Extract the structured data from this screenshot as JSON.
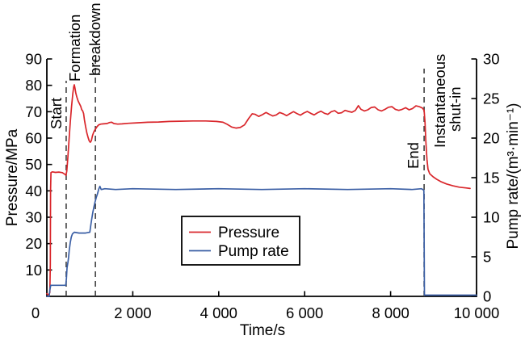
{
  "figure": {
    "background": "#ffffff",
    "axis_color": "#000000",
    "annotation_line_color": "#3d3d3d"
  },
  "chart_data": {
    "type": "line",
    "title": "",
    "xlabel": "Time/s",
    "ylabel_left": "Pressure/MPa",
    "ylabel_right": "Pump rate/(m³·min⁻¹)",
    "xlim": [
      0,
      10000
    ],
    "ylim_left": [
      0,
      90
    ],
    "ylim_right": [
      0,
      30
    ],
    "grid": false,
    "x_major_ticks": [
      0,
      2000,
      4000,
      6000,
      8000,
      10000
    ],
    "x_tick_labels": [
      "0",
      "2 000",
      "4 000",
      "6 000",
      "8 000",
      "10 000"
    ],
    "y_left_ticks": [
      10,
      20,
      30,
      40,
      50,
      60,
      70,
      80,
      90
    ],
    "y_right_ticks": [
      0,
      5,
      10,
      15,
      20,
      25,
      30
    ],
    "legend": {
      "position": "lower-center",
      "entries": [
        {
          "name": "Pressure",
          "color": "#d9262b"
        },
        {
          "name": "Pump rate",
          "color": "#3b5fa5"
        }
      ]
    },
    "annotations": [
      {
        "label": "Start",
        "lines": [
          "Start"
        ],
        "time": 450,
        "draw_line": true
      },
      {
        "label": "Formation breakdown",
        "lines": [
          "Formation",
          "breakdown"
        ],
        "time": 1130,
        "draw_line": true
      },
      {
        "label": "End",
        "lines": [
          "End"
        ],
        "time": 8780,
        "draw_line": true
      },
      {
        "label": "Instantaneous shut-in",
        "lines": [
          "Instantaneous",
          "shut-in"
        ],
        "time": 8780,
        "draw_line": false
      }
    ],
    "series": [
      {
        "name": "Pressure",
        "axis": "left",
        "color": "#d9262b",
        "points": [
          [
            0,
            1.0
          ],
          [
            40,
            0.5
          ],
          [
            70,
            1.5
          ],
          [
            80,
            12
          ],
          [
            86,
            40
          ],
          [
            95,
            46.9
          ],
          [
            130,
            47.2
          ],
          [
            200,
            47.0
          ],
          [
            280,
            47.1
          ],
          [
            360,
            46.9
          ],
          [
            420,
            46.3
          ],
          [
            445,
            45.9
          ],
          [
            465,
            47.5
          ],
          [
            490,
            53
          ],
          [
            515,
            59
          ],
          [
            545,
            66
          ],
          [
            575,
            72
          ],
          [
            605,
            77
          ],
          [
            625,
            79.5
          ],
          [
            640,
            80.2
          ],
          [
            655,
            79
          ],
          [
            675,
            77
          ],
          [
            700,
            75.5
          ],
          [
            730,
            74
          ],
          [
            760,
            73
          ],
          [
            790,
            72
          ],
          [
            810,
            70.8
          ],
          [
            835,
            70.3
          ],
          [
            855,
            69.3
          ],
          [
            875,
            67
          ],
          [
            900,
            64.5
          ],
          [
            930,
            62
          ],
          [
            960,
            60.2
          ],
          [
            985,
            59
          ],
          [
            1010,
            58.4
          ],
          [
            1035,
            59
          ],
          [
            1060,
            60.8
          ],
          [
            1085,
            62
          ],
          [
            1110,
            62.9
          ],
          [
            1135,
            63.5
          ],
          [
            1165,
            64.3
          ],
          [
            1205,
            65.0
          ],
          [
            1255,
            65.3
          ],
          [
            1310,
            65.4
          ],
          [
            1400,
            65.5
          ],
          [
            1460,
            65.9
          ],
          [
            1510,
            66.0
          ],
          [
            1560,
            65.5
          ],
          [
            1650,
            65.3
          ],
          [
            1750,
            65.4
          ],
          [
            1900,
            65.6
          ],
          [
            2100,
            65.8
          ],
          [
            2350,
            66.0
          ],
          [
            2600,
            66.1
          ],
          [
            2850,
            66.3
          ],
          [
            3100,
            66.4
          ],
          [
            3400,
            66.5
          ],
          [
            3700,
            66.5
          ],
          [
            3950,
            66.3
          ],
          [
            4100,
            66.0
          ],
          [
            4200,
            65.2
          ],
          [
            4300,
            64.2
          ],
          [
            4400,
            63.8
          ],
          [
            4500,
            64.0
          ],
          [
            4600,
            65.0
          ],
          [
            4700,
            67.5
          ],
          [
            4780,
            69.2
          ],
          [
            4850,
            69.0
          ],
          [
            4930,
            68.2
          ],
          [
            5020,
            68.9
          ],
          [
            5100,
            69.7
          ],
          [
            5180,
            69.0
          ],
          [
            5260,
            68.4
          ],
          [
            5340,
            68.8
          ],
          [
            5420,
            69.7
          ],
          [
            5500,
            69.2
          ],
          [
            5580,
            68.5
          ],
          [
            5660,
            69.3
          ],
          [
            5740,
            70.0
          ],
          [
            5820,
            69.3
          ],
          [
            5900,
            68.7
          ],
          [
            5980,
            69.5
          ],
          [
            6060,
            70.1
          ],
          [
            6140,
            69.4
          ],
          [
            6220,
            68.8
          ],
          [
            6300,
            69.6
          ],
          [
            6380,
            70.2
          ],
          [
            6460,
            69.4
          ],
          [
            6540,
            69.0
          ],
          [
            6620,
            70.0
          ],
          [
            6700,
            70.4
          ],
          [
            6780,
            69.4
          ],
          [
            6860,
            69.6
          ],
          [
            6940,
            70.5
          ],
          [
            7020,
            70.1
          ],
          [
            7100,
            69.8
          ],
          [
            7180,
            70.5
          ],
          [
            7250,
            72.3
          ],
          [
            7310,
            70.9
          ],
          [
            7390,
            70.3
          ],
          [
            7470,
            70.7
          ],
          [
            7550,
            71.6
          ],
          [
            7630,
            71.8
          ],
          [
            7710,
            70.7
          ],
          [
            7790,
            70.3
          ],
          [
            7870,
            70.9
          ],
          [
            7950,
            71.7
          ],
          [
            8030,
            71.9
          ],
          [
            8110,
            70.9
          ],
          [
            8190,
            70.5
          ],
          [
            8270,
            70.9
          ],
          [
            8350,
            71.5
          ],
          [
            8430,
            70.7
          ],
          [
            8510,
            71.2
          ],
          [
            8590,
            72.2
          ],
          [
            8670,
            71.9
          ],
          [
            8740,
            71.4
          ],
          [
            8780,
            70.5
          ],
          [
            8800,
            66
          ],
          [
            8820,
            59
          ],
          [
            8845,
            52
          ],
          [
            8870,
            48.2
          ],
          [
            8910,
            46.5
          ],
          [
            8990,
            45.3
          ],
          [
            9080,
            44.3
          ],
          [
            9180,
            43.4
          ],
          [
            9300,
            42.6
          ],
          [
            9450,
            41.9
          ],
          [
            9600,
            41.4
          ],
          [
            9750,
            41.1
          ],
          [
            9850,
            40.9
          ]
        ]
      },
      {
        "name": "Pump rate",
        "axis": "right",
        "color": "#3b5fa5",
        "points": [
          [
            0,
            0
          ],
          [
            55,
            0
          ],
          [
            70,
            0.8
          ],
          [
            90,
            1.4
          ],
          [
            250,
            1.4
          ],
          [
            440,
            1.4
          ],
          [
            455,
            2.2
          ],
          [
            470,
            3.6
          ],
          [
            490,
            4.3
          ],
          [
            505,
            4.9
          ],
          [
            520,
            5.8
          ],
          [
            545,
            6.8
          ],
          [
            570,
            7.5
          ],
          [
            595,
            7.9
          ],
          [
            640,
            8.1
          ],
          [
            750,
            8.0
          ],
          [
            900,
            8.0
          ],
          [
            1000,
            8.1
          ],
          [
            1020,
            8.9
          ],
          [
            1045,
            9.8
          ],
          [
            1070,
            10.6
          ],
          [
            1095,
            11.3
          ],
          [
            1120,
            11.9
          ],
          [
            1150,
            12.5
          ],
          [
            1180,
            13.0
          ],
          [
            1210,
            13.6
          ],
          [
            1235,
            13.9
          ],
          [
            1265,
            13.5
          ],
          [
            1350,
            13.6
          ],
          [
            1600,
            13.5
          ],
          [
            2000,
            13.6
          ],
          [
            3000,
            13.5
          ],
          [
            4000,
            13.6
          ],
          [
            5000,
            13.5
          ],
          [
            6000,
            13.6
          ],
          [
            7000,
            13.5
          ],
          [
            8000,
            13.6
          ],
          [
            8500,
            13.5
          ],
          [
            8720,
            13.6
          ],
          [
            8775,
            13.4
          ],
          [
            8788,
            0.15
          ],
          [
            9000,
            0.15
          ],
          [
            9500,
            0.15
          ],
          [
            10000,
            0.15
          ]
        ]
      }
    ]
  }
}
